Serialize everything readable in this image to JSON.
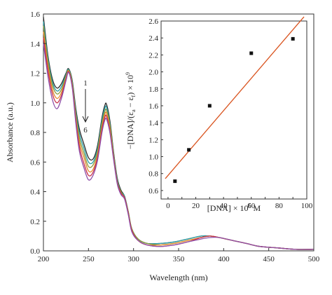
{
  "chart_data": [
    {
      "type": "line",
      "xlabel": "Wavelength (nm)",
      "ylabel": "Absorbance (a.u.)",
      "xlim": [
        200,
        500
      ],
      "ylim": [
        0.0,
        1.6
      ],
      "x_ticks": [
        "200",
        "250",
        "300",
        "350",
        "400",
        "450",
        "500"
      ],
      "y_ticks": [
        "0.0",
        "0.2",
        "0.4",
        "0.6",
        "0.8",
        "1.0",
        "1.2",
        "1.4",
        "1.6"
      ],
      "annotation": {
        "start_label": "1",
        "end_label": "6"
      },
      "x": [
        200,
        205,
        210,
        215,
        220,
        225,
        228,
        232,
        236,
        240,
        245,
        250,
        255,
        260,
        265,
        268,
        270,
        274,
        278,
        282,
        286,
        290,
        294,
        298,
        305,
        315,
        330,
        345,
        360,
        375,
        385,
        395,
        410,
        425,
        440,
        460,
        480,
        500
      ],
      "series": [
        {
          "color": "#2b2b2b",
          "values": [
            1.58,
            1.32,
            1.16,
            1.1,
            1.13,
            1.2,
            1.23,
            1.15,
            0.96,
            0.82,
            0.72,
            0.63,
            0.62,
            0.71,
            0.9,
            0.98,
            0.99,
            0.87,
            0.66,
            0.49,
            0.41,
            0.37,
            0.27,
            0.15,
            0.08,
            0.05,
            0.05,
            0.06,
            0.08,
            0.1,
            0.1,
            0.09,
            0.07,
            0.05,
            0.03,
            0.02,
            0.01,
            0.01
          ]
        },
        {
          "color": "#2a9fa6",
          "values": [
            1.55,
            1.3,
            1.14,
            1.08,
            1.11,
            1.19,
            1.225,
            1.14,
            0.94,
            0.79,
            0.69,
            0.6,
            0.6,
            0.69,
            0.88,
            0.96,
            0.97,
            0.85,
            0.65,
            0.48,
            0.4,
            0.37,
            0.27,
            0.15,
            0.08,
            0.05,
            0.05,
            0.06,
            0.08,
            0.1,
            0.1,
            0.09,
            0.07,
            0.05,
            0.03,
            0.02,
            0.01,
            0.01
          ]
        },
        {
          "color": "#8c9a3a",
          "values": [
            1.52,
            1.28,
            1.12,
            1.06,
            1.09,
            1.18,
            1.22,
            1.13,
            0.92,
            0.76,
            0.66,
            0.57,
            0.58,
            0.67,
            0.86,
            0.94,
            0.95,
            0.84,
            0.64,
            0.47,
            0.4,
            0.36,
            0.27,
            0.15,
            0.08,
            0.05,
            0.04,
            0.05,
            0.07,
            0.09,
            0.1,
            0.09,
            0.07,
            0.05,
            0.03,
            0.02,
            0.01,
            0.01
          ]
        },
        {
          "color": "#e48a2c",
          "values": [
            1.48,
            1.25,
            1.09,
            1.03,
            1.07,
            1.17,
            1.215,
            1.12,
            0.9,
            0.73,
            0.63,
            0.54,
            0.55,
            0.65,
            0.84,
            0.92,
            0.93,
            0.82,
            0.63,
            0.46,
            0.39,
            0.36,
            0.26,
            0.14,
            0.07,
            0.04,
            0.04,
            0.05,
            0.07,
            0.09,
            0.1,
            0.09,
            0.07,
            0.05,
            0.03,
            0.02,
            0.01,
            0.01
          ]
        },
        {
          "color": "#c8304a",
          "values": [
            1.44,
            1.22,
            1.06,
            1.0,
            1.05,
            1.16,
            1.21,
            1.11,
            0.88,
            0.7,
            0.59,
            0.51,
            0.53,
            0.63,
            0.82,
            0.9,
            0.91,
            0.8,
            0.62,
            0.46,
            0.39,
            0.36,
            0.26,
            0.14,
            0.07,
            0.04,
            0.03,
            0.04,
            0.06,
            0.09,
            0.1,
            0.09,
            0.07,
            0.05,
            0.03,
            0.02,
            0.01,
            0.01
          ]
        },
        {
          "color": "#8e4fa8",
          "values": [
            1.4,
            1.18,
            1.02,
            0.96,
            1.03,
            1.15,
            1.205,
            1.1,
            0.86,
            0.67,
            0.56,
            0.48,
            0.51,
            0.61,
            0.8,
            0.88,
            0.89,
            0.79,
            0.61,
            0.45,
            0.38,
            0.35,
            0.25,
            0.13,
            0.07,
            0.04,
            0.03,
            0.04,
            0.06,
            0.08,
            0.09,
            0.09,
            0.07,
            0.05,
            0.03,
            0.02,
            0.01,
            0.01
          ]
        }
      ]
    },
    {
      "type": "scatter",
      "xlabel": "[DNA] × 10",
      "xlabel_sup": "6",
      "xlabel_unit": " M",
      "ylabel": "−[DNA]/(ε",
      "ylabel_sub1": "a",
      "ylabel_mid": " − ε",
      "ylabel_sub2": "f",
      "ylabel_end": ") × 10",
      "ylabel_sup": "9",
      "xlim": [
        -5,
        100
      ],
      "ylim": [
        0.5,
        2.6
      ],
      "x_ticks": [
        "0",
        "10",
        "20",
        "30",
        "40",
        "50",
        "60",
        "70",
        "80",
        "90",
        "100"
      ],
      "y_ticks": [
        "0.6",
        "0.8",
        "1.0",
        "1.2",
        "1.4",
        "1.6",
        "1.8",
        "2.0",
        "2.2",
        "2.4",
        "2.6"
      ],
      "points": [
        {
          "x": 5,
          "y": 0.71
        },
        {
          "x": 15,
          "y": 1.08
        },
        {
          "x": 30,
          "y": 1.6
        },
        {
          "x": 60,
          "y": 2.22
        },
        {
          "x": 90,
          "y": 2.39
        }
      ],
      "fit_line": {
        "color": "#d9531e",
        "x": [
          -2,
          98
        ],
        "y": [
          0.74,
          2.65
        ]
      }
    }
  ]
}
